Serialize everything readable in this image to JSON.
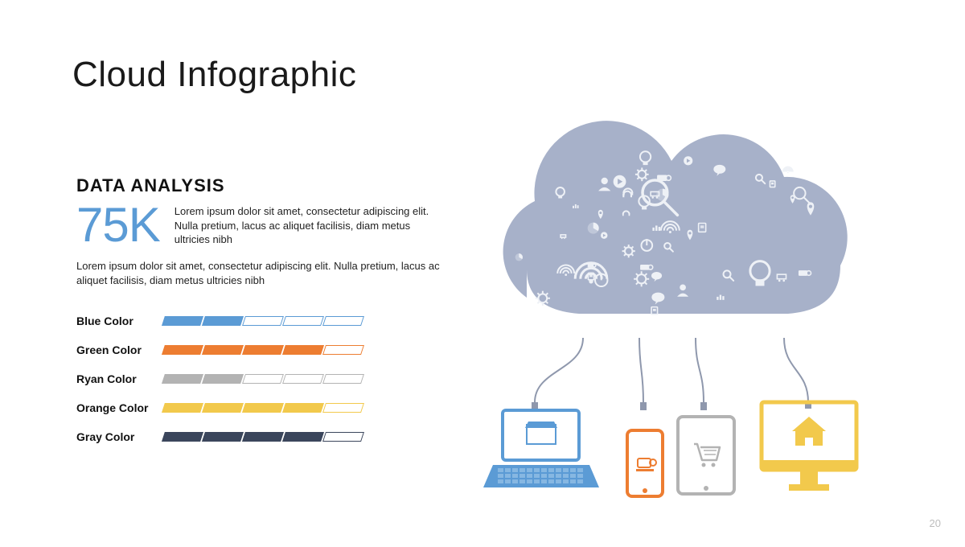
{
  "title": "Cloud Infographic",
  "section_heading": "DATA ANALYSIS",
  "stat_value": "75K",
  "stat_color": "#5b9bd5",
  "stat_paragraph": "Lorem ipsum dolor sit amet, consectetur adipiscing elit. Nulla pretium, lacus ac aliquet facilisis, diam metus ultricies nibh",
  "lower_paragraph": "Lorem ipsum dolor sit amet, consectetur adipiscing elit. Nulla pretium, lacus ac aliquet facilisis, diam metus ultricies nibh",
  "bars": {
    "segments": 5,
    "seg_width": 48,
    "seg_height": 12,
    "skew_deg": -18,
    "items": [
      {
        "label": "Blue Color",
        "filled": 2,
        "color": "#5b9bd5"
      },
      {
        "label": "Green Color",
        "filled": 4,
        "color": "#ed7d31"
      },
      {
        "label": "Ryan Color",
        "filled": 2,
        "color": "#b3b3b3"
      },
      {
        "label": "Orange Color",
        "filled": 4,
        "color": "#f2c94c"
      },
      {
        "label": "Gray Color",
        "filled": 4,
        "color": "#3b465c"
      }
    ]
  },
  "page_number": "20",
  "palette": {
    "cloud_body": "#a7b1c9",
    "cloud_icon_fg": "#eef1f6",
    "wire": "#8f98ad",
    "laptop": "#5b9bd5",
    "phone": "#ed7d31",
    "tablet": "#b3b3b3",
    "monitor": "#f2c94c",
    "white": "#ffffff"
  },
  "devices": [
    {
      "name": "laptop",
      "color_key": "laptop",
      "icon": "storefront"
    },
    {
      "name": "phone",
      "color_key": "phone",
      "icon": "coffee"
    },
    {
      "name": "tablet",
      "color_key": "tablet",
      "icon": "cart"
    },
    {
      "name": "monitor",
      "color_key": "monitor",
      "icon": "home"
    }
  ]
}
